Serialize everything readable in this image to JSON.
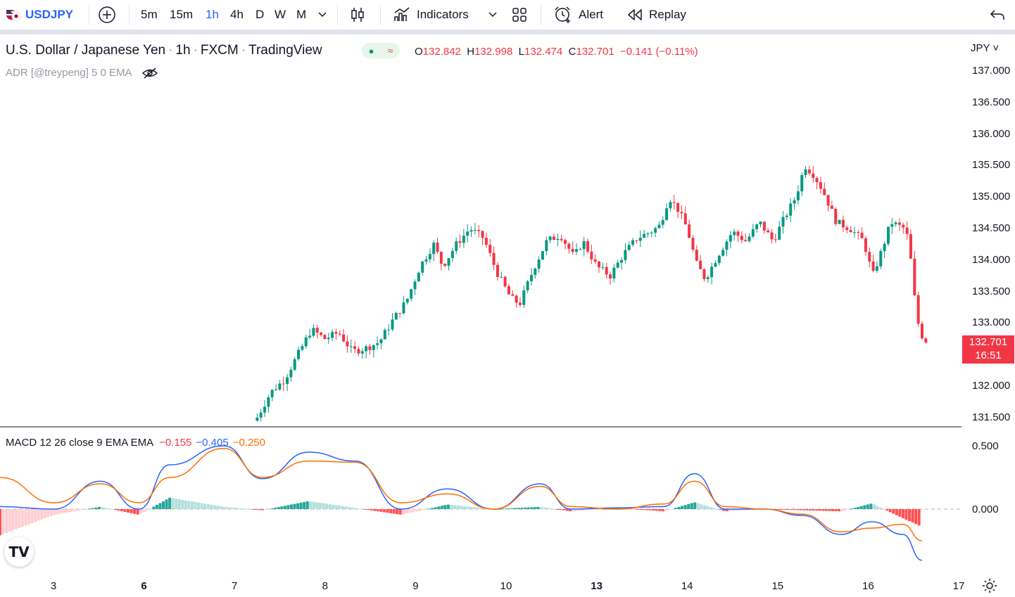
{
  "toolbar": {
    "symbol": "USDJPY",
    "timeframes": [
      "5m",
      "15m",
      "1h",
      "4h",
      "D",
      "W",
      "M"
    ],
    "active_timeframe": "1h",
    "indicators_label": "Indicators",
    "alert_label": "Alert",
    "replay_label": "Replay"
  },
  "legend": {
    "title": "U.S. Dollar / Japanese Yen",
    "interval": "1h",
    "exchange": "FXCM",
    "source": "TradingView",
    "open_label": "O",
    "open": "132.842",
    "high_label": "H",
    "high": "132.998",
    "low_label": "L",
    "low": "132.474",
    "close_label": "C",
    "close": "132.701",
    "change": "−0.141 (−0.11%)",
    "indicator": "ADR [@treypeng] 5 0 EMA"
  },
  "price_axis": {
    "currency": "JPY",
    "labels": [
      "137.000",
      "136.500",
      "136.000",
      "135.500",
      "135.000",
      "134.500",
      "134.000",
      "133.500",
      "133.000",
      "132.000",
      "131.500"
    ],
    "last_price": "132.701",
    "countdown": "16:51"
  },
  "macd": {
    "label": "MACD 12 26 close 9 EMA EMA",
    "hist_value": "−0.155",
    "macd_value": "−0.405",
    "signal_value": "−0.250",
    "axis_labels": [
      "0.500",
      "0.000"
    ]
  },
  "time_axis": {
    "labels": [
      "3",
      "6",
      "7",
      "8",
      "9",
      "10",
      "13",
      "14",
      "15",
      "16",
      "17"
    ],
    "bold": [
      "6",
      "13"
    ]
  },
  "colors": {
    "up": "#089981",
    "down": "#f23645",
    "macd_line": "#2962ff",
    "signal_line": "#ff6d00",
    "hist_up_strong": "#26a69a",
    "hist_up_weak": "#b2dfdb",
    "hist_down_strong": "#ff5252",
    "hist_down_weak": "#ffcdd2",
    "accent": "#2962ff"
  },
  "chart_data": {
    "type": "candlestick",
    "x_labels": [
      "3",
      "6",
      "7",
      "8",
      "9",
      "10",
      "13",
      "14",
      "15",
      "16",
      "17"
    ],
    "ylim": [
      131.45,
      137.25
    ],
    "close_path": [
      [
        8.55,
        131.5
      ],
      [
        8.7,
        131.9
      ],
      [
        8.85,
        132.1
      ],
      [
        9.0,
        132.5
      ],
      [
        9.15,
        132.9
      ],
      [
        9.3,
        132.75
      ],
      [
        9.45,
        132.85
      ],
      [
        9.6,
        132.55
      ],
      [
        9.75,
        132.6
      ],
      [
        9.9,
        132.7
      ],
      [
        10.05,
        133.05
      ],
      [
        10.2,
        133.35
      ],
      [
        10.35,
        133.9
      ],
      [
        10.5,
        134.25
      ],
      [
        10.6,
        133.9
      ],
      [
        10.75,
        134.25
      ],
      [
        10.9,
        134.5
      ],
      [
        11.05,
        134.35
      ],
      [
        11.2,
        133.8
      ],
      [
        11.35,
        133.4
      ],
      [
        11.45,
        133.3
      ],
      [
        11.6,
        133.85
      ],
      [
        11.75,
        134.3
      ],
      [
        11.9,
        134.4
      ],
      [
        12.05,
        134.05
      ],
      [
        12.15,
        134.3
      ],
      [
        12.3,
        133.9
      ],
      [
        12.45,
        133.75
      ],
      [
        12.6,
        134.1
      ],
      [
        12.75,
        134.35
      ],
      [
        12.9,
        134.45
      ],
      [
        13.0,
        134.55
      ],
      [
        13.1,
        135.0
      ],
      [
        13.2,
        134.8
      ],
      [
        13.3,
        134.5
      ],
      [
        13.4,
        133.95
      ],
      [
        13.5,
        133.7
      ],
      [
        13.65,
        134.1
      ],
      [
        13.8,
        134.45
      ],
      [
        13.95,
        134.3
      ],
      [
        14.1,
        134.6
      ],
      [
        14.25,
        134.3
      ],
      [
        14.35,
        134.6
      ],
      [
        14.5,
        135.0
      ],
      [
        14.6,
        135.5
      ],
      [
        14.7,
        135.35
      ],
      [
        14.8,
        135.1
      ],
      [
        14.95,
        134.6
      ],
      [
        15.1,
        134.5
      ],
      [
        15.25,
        134.3
      ],
      [
        15.35,
        133.75
      ],
      [
        15.45,
        134.15
      ],
      [
        15.55,
        134.6
      ],
      [
        15.7,
        134.5
      ],
      [
        15.75,
        134.3
      ],
      [
        15.82,
        133.3
      ],
      [
        15.87,
        132.85
      ],
      [
        15.92,
        132.75
      ],
      [
        15.95,
        132.7
      ]
    ],
    "macd_path": [
      [
        4.0,
        0.02
      ],
      [
        4.7,
        0.0
      ],
      [
        5.3,
        0.22
      ],
      [
        5.8,
        0.0
      ],
      [
        6.2,
        0.35
      ],
      [
        6.9,
        0.5
      ],
      [
        7.4,
        0.24
      ],
      [
        8.0,
        0.45
      ],
      [
        8.6,
        0.38
      ],
      [
        9.2,
        0.0
      ],
      [
        9.8,
        0.16
      ],
      [
        10.4,
        0.0
      ],
      [
        11.0,
        0.2
      ],
      [
        11.4,
        0.0
      ],
      [
        12.0,
        0.01
      ],
      [
        12.6,
        0.02
      ],
      [
        13.0,
        0.28
      ],
      [
        13.4,
        0.0
      ],
      [
        13.9,
        0.0
      ],
      [
        14.4,
        -0.05
      ],
      [
        14.9,
        -0.2
      ],
      [
        15.3,
        -0.1
      ],
      [
        15.7,
        -0.2
      ],
      [
        15.95,
        -0.405
      ]
    ],
    "signal_path": [
      [
        4.0,
        0.25
      ],
      [
        4.7,
        0.05
      ],
      [
        5.3,
        0.2
      ],
      [
        5.8,
        0.05
      ],
      [
        6.2,
        0.25
      ],
      [
        6.9,
        0.48
      ],
      [
        7.4,
        0.25
      ],
      [
        8.0,
        0.38
      ],
      [
        8.6,
        0.37
      ],
      [
        9.2,
        0.05
      ],
      [
        9.8,
        0.12
      ],
      [
        10.4,
        0.0
      ],
      [
        11.0,
        0.18
      ],
      [
        11.4,
        0.02
      ],
      [
        12.0,
        0.0
      ],
      [
        12.6,
        0.04
      ],
      [
        13.0,
        0.22
      ],
      [
        13.4,
        0.02
      ],
      [
        13.9,
        0.0
      ],
      [
        14.4,
        -0.04
      ],
      [
        14.9,
        -0.18
      ],
      [
        15.3,
        -0.15
      ],
      [
        15.7,
        -0.12
      ],
      [
        15.95,
        -0.25
      ]
    ],
    "macd_ylim": [
      -0.45,
      0.55
    ]
  }
}
